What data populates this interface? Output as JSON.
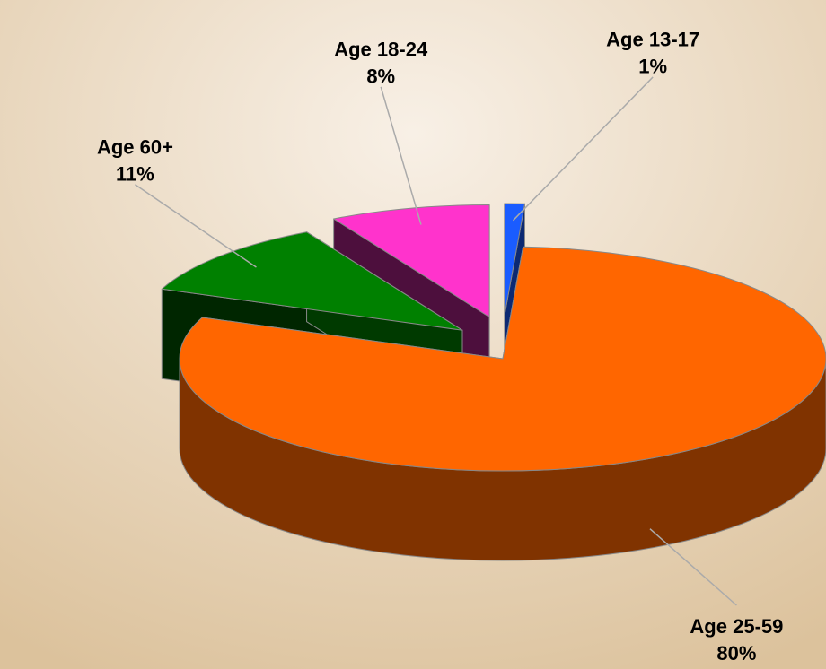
{
  "chart_data": {
    "type": "pie",
    "categories": [
      "Age 13-17",
      "Age 25-59",
      "Age 60+",
      "Age 18-24"
    ],
    "values": [
      1,
      80,
      11,
      8
    ],
    "value_labels": [
      "1%",
      "80%",
      "11%",
      "8%"
    ],
    "colors": [
      "#1a5cff",
      "#ff6600",
      "#008000",
      "#ff33cc"
    ]
  }
}
